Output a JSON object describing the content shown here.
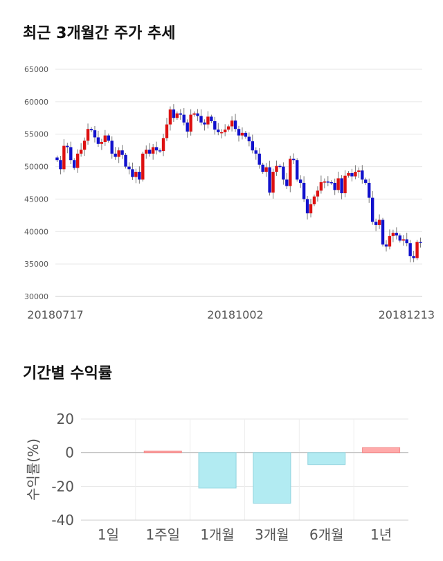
{
  "titles": {
    "candle": "최근 3개월간 주가 추세",
    "returns": "기간별 수익률"
  },
  "chart_data": [
    {
      "type": "candlestick",
      "yticks": [
        "65000",
        "60000",
        "55000",
        "50000",
        "45000",
        "40000",
        "35000",
        "30000"
      ],
      "ylim": [
        30000,
        65000
      ],
      "xticks": [
        "20180717",
        "20181002",
        "20181213"
      ],
      "grid": true,
      "colors": {
        "up": "#dd1111",
        "down": "#1111cc"
      },
      "close": [
        51000,
        49600,
        53200,
        53000,
        51000,
        49800,
        52000,
        52600,
        54000,
        55800,
        55600,
        54500,
        53500,
        53800,
        54800,
        54000,
        52000,
        51500,
        52500,
        51800,
        50000,
        49600,
        48400,
        49200,
        48000,
        52000,
        52600,
        52000,
        53000,
        52500,
        52400,
        54400,
        56500,
        58800,
        57500,
        58200,
        58000,
        56800,
        55400,
        58000,
        58200,
        57800,
        56800,
        56500,
        57700,
        57000,
        55700,
        55300,
        55300,
        55700,
        56200,
        57100,
        55800,
        54800,
        55200,
        54600,
        53900,
        52500,
        52000,
        50300,
        49200,
        49900,
        46000,
        49200,
        50100,
        50000,
        48000,
        47000,
        51200,
        51000,
        48000,
        47500,
        45000,
        42800,
        44200,
        45400,
        46300,
        47600,
        47700,
        47600,
        47500,
        46400,
        48200,
        45900,
        48600,
        49000,
        48500,
        49200,
        49400,
        48000,
        47500,
        45200,
        41500,
        41000,
        41800,
        38000,
        37700,
        39300,
        39800,
        39400,
        38600,
        38800,
        38200,
        36200,
        35900,
        38400,
        38300
      ]
    },
    {
      "type": "bar",
      "categories": [
        "1일",
        "1주일",
        "1개월",
        "3개월",
        "6개월",
        "1년"
      ],
      "values": [
        0,
        1,
        -21,
        -30,
        -7,
        3
      ],
      "ylabel": "수익률(%)",
      "yticks": [
        "20",
        "0",
        "-20",
        "-40"
      ],
      "ylim": [
        -40,
        20
      ],
      "colors": {
        "positive": "#ffaaaa",
        "negative": "#b2ebf2"
      }
    }
  ]
}
